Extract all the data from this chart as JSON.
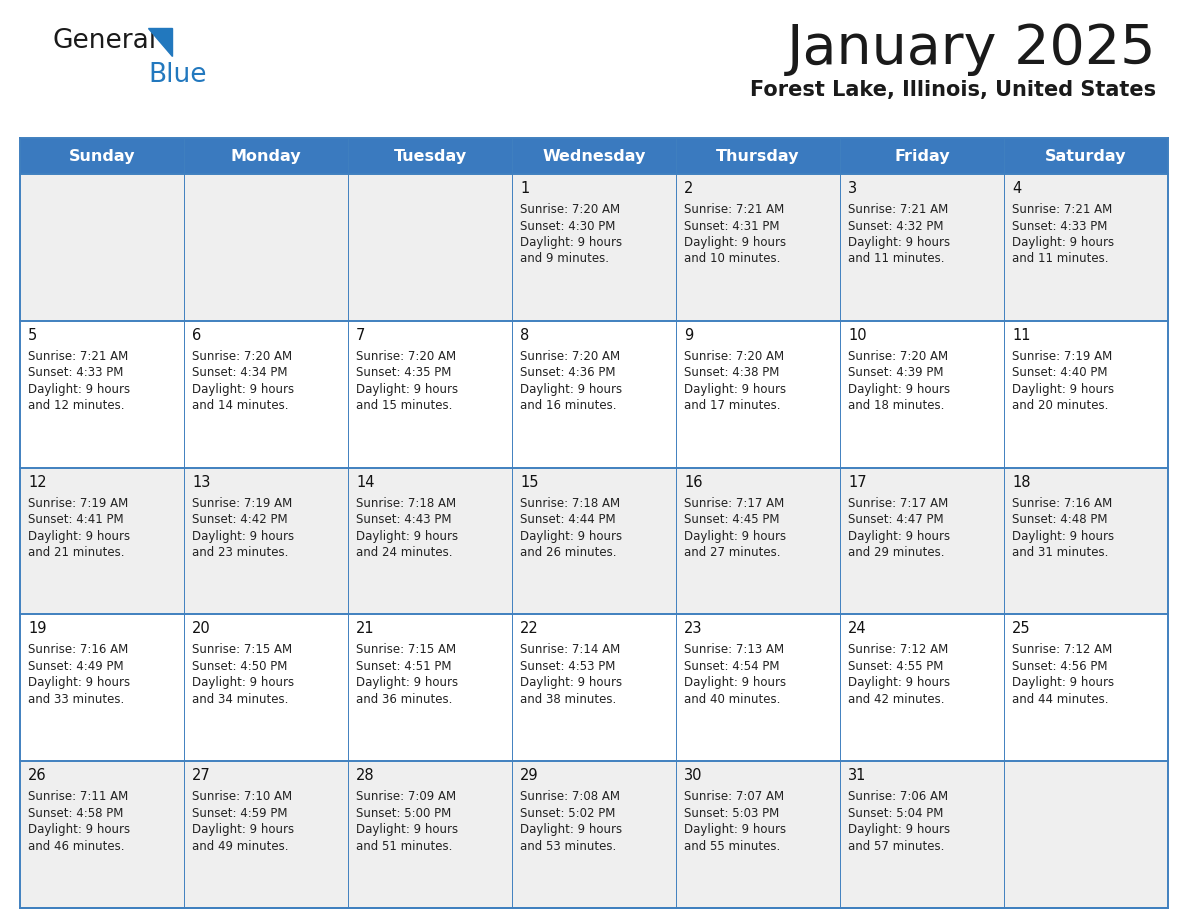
{
  "title": "January 2025",
  "subtitle": "Forest Lake, Illinois, United States",
  "header_color": "#3a7abf",
  "header_text_color": "#ffffff",
  "cell_bg_light": "#efefef",
  "cell_bg_white": "#ffffff",
  "day_names": [
    "Sunday",
    "Monday",
    "Tuesday",
    "Wednesday",
    "Thursday",
    "Friday",
    "Saturday"
  ],
  "title_color": "#1a1a1a",
  "subtitle_color": "#1a1a1a",
  "cell_text_color": "#222222",
  "day_num_color": "#111111",
  "logo_general_color": "#1a1a1a",
  "logo_blue_color": "#2278be",
  "grid_line_color": "#4080bf",
  "title_fontsize": 40,
  "subtitle_fontsize": 15,
  "header_fontsize": 11.5,
  "day_num_fontsize": 10.5,
  "cell_fontsize": 8.5,
  "weeks": [
    [
      null,
      null,
      null,
      {
        "day": 1,
        "sunrise": "7:20 AM",
        "sunset": "4:30 PM",
        "daylight": "9 hours",
        "daylight2": "and 9 minutes."
      },
      {
        "day": 2,
        "sunrise": "7:21 AM",
        "sunset": "4:31 PM",
        "daylight": "9 hours",
        "daylight2": "and 10 minutes."
      },
      {
        "day": 3,
        "sunrise": "7:21 AM",
        "sunset": "4:32 PM",
        "daylight": "9 hours",
        "daylight2": "and 11 minutes."
      },
      {
        "day": 4,
        "sunrise": "7:21 AM",
        "sunset": "4:33 PM",
        "daylight": "9 hours",
        "daylight2": "and 11 minutes."
      }
    ],
    [
      {
        "day": 5,
        "sunrise": "7:21 AM",
        "sunset": "4:33 PM",
        "daylight": "9 hours",
        "daylight2": "and 12 minutes."
      },
      {
        "day": 6,
        "sunrise": "7:20 AM",
        "sunset": "4:34 PM",
        "daylight": "9 hours",
        "daylight2": "and 14 minutes."
      },
      {
        "day": 7,
        "sunrise": "7:20 AM",
        "sunset": "4:35 PM",
        "daylight": "9 hours",
        "daylight2": "and 15 minutes."
      },
      {
        "day": 8,
        "sunrise": "7:20 AM",
        "sunset": "4:36 PM",
        "daylight": "9 hours",
        "daylight2": "and 16 minutes."
      },
      {
        "day": 9,
        "sunrise": "7:20 AM",
        "sunset": "4:38 PM",
        "daylight": "9 hours",
        "daylight2": "and 17 minutes."
      },
      {
        "day": 10,
        "sunrise": "7:20 AM",
        "sunset": "4:39 PM",
        "daylight": "9 hours",
        "daylight2": "and 18 minutes."
      },
      {
        "day": 11,
        "sunrise": "7:19 AM",
        "sunset": "4:40 PM",
        "daylight": "9 hours",
        "daylight2": "and 20 minutes."
      }
    ],
    [
      {
        "day": 12,
        "sunrise": "7:19 AM",
        "sunset": "4:41 PM",
        "daylight": "9 hours",
        "daylight2": "and 21 minutes."
      },
      {
        "day": 13,
        "sunrise": "7:19 AM",
        "sunset": "4:42 PM",
        "daylight": "9 hours",
        "daylight2": "and 23 minutes."
      },
      {
        "day": 14,
        "sunrise": "7:18 AM",
        "sunset": "4:43 PM",
        "daylight": "9 hours",
        "daylight2": "and 24 minutes."
      },
      {
        "day": 15,
        "sunrise": "7:18 AM",
        "sunset": "4:44 PM",
        "daylight": "9 hours",
        "daylight2": "and 26 minutes."
      },
      {
        "day": 16,
        "sunrise": "7:17 AM",
        "sunset": "4:45 PM",
        "daylight": "9 hours",
        "daylight2": "and 27 minutes."
      },
      {
        "day": 17,
        "sunrise": "7:17 AM",
        "sunset": "4:47 PM",
        "daylight": "9 hours",
        "daylight2": "and 29 minutes."
      },
      {
        "day": 18,
        "sunrise": "7:16 AM",
        "sunset": "4:48 PM",
        "daylight": "9 hours",
        "daylight2": "and 31 minutes."
      }
    ],
    [
      {
        "day": 19,
        "sunrise": "7:16 AM",
        "sunset": "4:49 PM",
        "daylight": "9 hours",
        "daylight2": "and 33 minutes."
      },
      {
        "day": 20,
        "sunrise": "7:15 AM",
        "sunset": "4:50 PM",
        "daylight": "9 hours",
        "daylight2": "and 34 minutes."
      },
      {
        "day": 21,
        "sunrise": "7:15 AM",
        "sunset": "4:51 PM",
        "daylight": "9 hours",
        "daylight2": "and 36 minutes."
      },
      {
        "day": 22,
        "sunrise": "7:14 AM",
        "sunset": "4:53 PM",
        "daylight": "9 hours",
        "daylight2": "and 38 minutes."
      },
      {
        "day": 23,
        "sunrise": "7:13 AM",
        "sunset": "4:54 PM",
        "daylight": "9 hours",
        "daylight2": "and 40 minutes."
      },
      {
        "day": 24,
        "sunrise": "7:12 AM",
        "sunset": "4:55 PM",
        "daylight": "9 hours",
        "daylight2": "and 42 minutes."
      },
      {
        "day": 25,
        "sunrise": "7:12 AM",
        "sunset": "4:56 PM",
        "daylight": "9 hours",
        "daylight2": "and 44 minutes."
      }
    ],
    [
      {
        "day": 26,
        "sunrise": "7:11 AM",
        "sunset": "4:58 PM",
        "daylight": "9 hours",
        "daylight2": "and 46 minutes."
      },
      {
        "day": 27,
        "sunrise": "7:10 AM",
        "sunset": "4:59 PM",
        "daylight": "9 hours",
        "daylight2": "and 49 minutes."
      },
      {
        "day": 28,
        "sunrise": "7:09 AM",
        "sunset": "5:00 PM",
        "daylight": "9 hours",
        "daylight2": "and 51 minutes."
      },
      {
        "day": 29,
        "sunrise": "7:08 AM",
        "sunset": "5:02 PM",
        "daylight": "9 hours",
        "daylight2": "and 53 minutes."
      },
      {
        "day": 30,
        "sunrise": "7:07 AM",
        "sunset": "5:03 PM",
        "daylight": "9 hours",
        "daylight2": "and 55 minutes."
      },
      {
        "day": 31,
        "sunrise": "7:06 AM",
        "sunset": "5:04 PM",
        "daylight": "9 hours",
        "daylight2": "and 57 minutes."
      },
      null
    ]
  ]
}
